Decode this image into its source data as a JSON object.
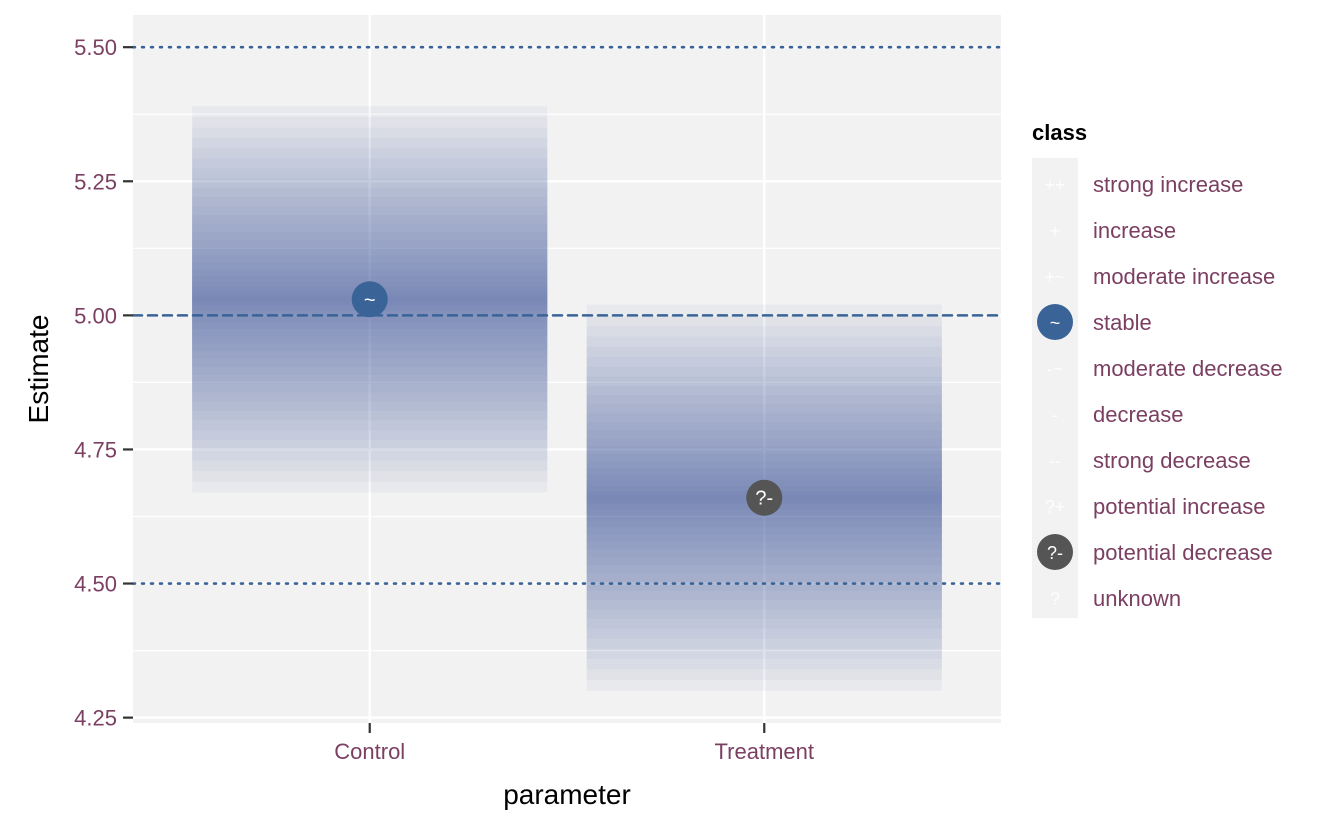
{
  "chart_data": {
    "type": "bar",
    "xlabel": "parameter",
    "ylabel": "Estimate",
    "categories": [
      "Control",
      "Treatment"
    ],
    "ylim": [
      4.24,
      5.56
    ],
    "y_ticks": [
      "4.25",
      "4.50",
      "4.75",
      "5.00",
      "5.25",
      "5.50"
    ],
    "y_tick_values": [
      4.25,
      4.5,
      4.75,
      5.0,
      5.25,
      5.5
    ],
    "reference_lines": [
      {
        "value": 5.0,
        "style": "dashed"
      },
      {
        "value": 4.5,
        "style": "dotted"
      },
      {
        "value": 5.5,
        "style": "dotted"
      }
    ],
    "estimates": [
      {
        "category": "Control",
        "estimate": 5.03,
        "lower": 4.67,
        "upper": 5.39,
        "class": "stable",
        "symbol": "~"
      },
      {
        "category": "Treatment",
        "estimate": 4.66,
        "lower": 4.3,
        "upper": 5.02,
        "class": "potential decrease",
        "symbol": "?-"
      }
    ],
    "grid": true,
    "legend": {
      "title": "class",
      "placement": "right",
      "entries": [
        {
          "symbol": "++",
          "label": "strong increase",
          "shown": false
        },
        {
          "symbol": "+",
          "label": "increase",
          "shown": false
        },
        {
          "symbol": "+~",
          "label": "moderate increase",
          "shown": false
        },
        {
          "symbol": "~",
          "label": "stable",
          "shown": true,
          "color": "#3a6398"
        },
        {
          "symbol": "-~",
          "label": "moderate decrease",
          "shown": false
        },
        {
          "symbol": "-",
          "label": "decrease",
          "shown": false
        },
        {
          "symbol": "--",
          "label": "strong decrease",
          "shown": false
        },
        {
          "symbol": "?+",
          "label": "potential increase",
          "shown": false
        },
        {
          "symbol": "?-",
          "label": "potential decrease",
          "shown": true,
          "color": "#555555"
        },
        {
          "symbol": "?",
          "label": "unknown",
          "shown": false
        }
      ]
    },
    "colors": {
      "panel": "#f2f2f2",
      "grid": "#ffffff",
      "band": "#3a6398",
      "reference": "#3a6398",
      "tick_text": "#7b3f62"
    }
  }
}
